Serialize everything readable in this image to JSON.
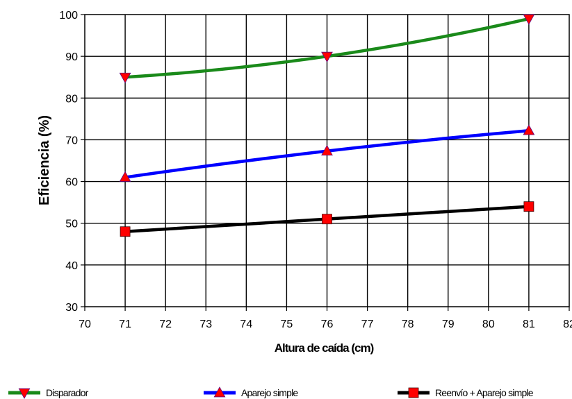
{
  "chart_data": {
    "type": "line",
    "title": "",
    "xlabel": "Altura de caída (cm)",
    "ylabel": "Eficiencia (%)",
    "xlim": [
      70,
      82
    ],
    "ylim": [
      30,
      100
    ],
    "x_ticks": [
      70,
      71,
      72,
      73,
      74,
      75,
      76,
      77,
      78,
      79,
      80,
      81,
      82
    ],
    "y_ticks": [
      30,
      40,
      50,
      60,
      70,
      80,
      90,
      100
    ],
    "grid": true,
    "legend_position": "bottom",
    "series": [
      {
        "name": "Disparador",
        "color": "#1a8a1a",
        "marker": "triangle-down",
        "marker_color": "#ff0000",
        "x": [
          71,
          76,
          81
        ],
        "y": [
          85,
          90,
          99
        ]
      },
      {
        "name": "Aparejo simple",
        "color": "#0000ff",
        "marker": "triangle-up",
        "marker_color": "#ff0000",
        "x": [
          71,
          76,
          81
        ],
        "y": [
          61,
          67.3,
          72.2
        ]
      },
      {
        "name": "Reenvío + Aparejo simple",
        "color": "#000000",
        "marker": "square",
        "marker_color": "#ff0000",
        "x": [
          71,
          76,
          81
        ],
        "y": [
          48,
          51,
          54
        ]
      }
    ]
  }
}
